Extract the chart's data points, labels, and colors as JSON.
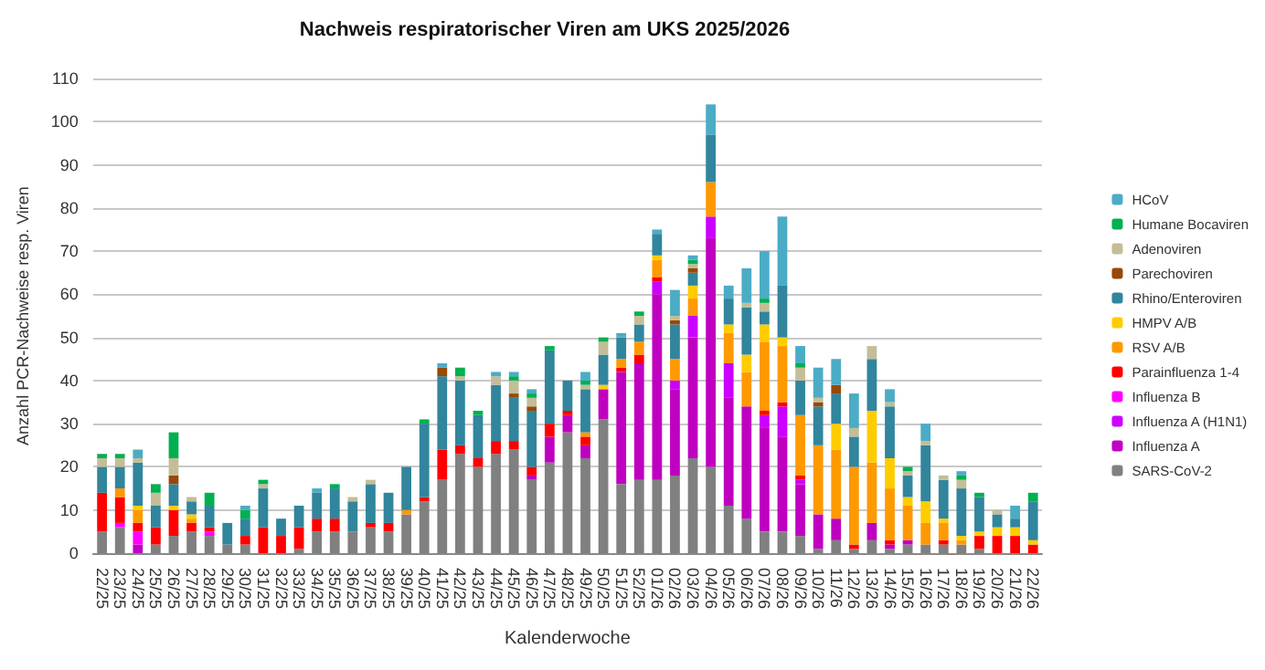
{
  "chart_data": {
    "type": "bar",
    "title": "Nachweis respiratorischer Viren am UKS 2025/2026",
    "xlabel": "Kalenderwoche",
    "ylabel": "Anzahl PCR-Nachweise resp. Viren",
    "categories": [
      "22/25",
      "23/25",
      "24/25",
      "25/25",
      "26/25",
      "27/25",
      "28/25",
      "29/25",
      "30/25",
      "31/25",
      "32/25",
      "33/25",
      "34/25",
      "35/25",
      "36/25",
      "37/25",
      "38/25",
      "39/25",
      "40/25",
      "41/25",
      "42/25",
      "43/25",
      "44/25",
      "45/25",
      "46/25",
      "47/25",
      "48/25",
      "49/25",
      "50/25",
      "51/25",
      "52/25",
      "01/26",
      "02/26",
      "03/26",
      "04/26",
      "05/26",
      "06/26",
      "07/26",
      "08/26",
      "09/26",
      "10/26",
      "11/26",
      "12/26",
      "13/26",
      "14/26",
      "15/26",
      "16/26",
      "17/26",
      "18/26",
      "19/26",
      "20/26",
      "21/26",
      "22/26"
    ],
    "stacked": true,
    "ylim": [
      0,
      110
    ],
    "yticks": [
      0,
      10,
      20,
      30,
      40,
      50,
      60,
      70,
      80,
      90,
      100,
      110
    ],
    "grid": "y",
    "legend": "right",
    "series": [
      {
        "name": "SARS-CoV-2",
        "color": "#808080",
        "values": [
          5,
          6,
          0,
          2,
          4,
          5,
          4,
          2,
          2,
          0,
          0,
          1,
          5,
          5,
          5,
          6,
          5,
          9,
          12,
          17,
          23,
          20,
          23,
          24,
          17,
          21,
          28,
          22,
          31,
          16,
          17,
          17,
          18,
          22,
          20,
          11,
          8,
          5,
          5,
          4,
          1,
          3,
          1,
          3,
          1,
          2,
          2,
          2,
          2,
          1,
          0,
          0,
          0
        ]
      },
      {
        "name": "Influenza A",
        "color": "#c000c0",
        "values": [
          0,
          0,
          2,
          0,
          0,
          0,
          0,
          0,
          0,
          0,
          0,
          0,
          0,
          0,
          0,
          0,
          0,
          0,
          0,
          0,
          0,
          0,
          0,
          0,
          1,
          6,
          4,
          3,
          7,
          26,
          27,
          43,
          20,
          28,
          53,
          25,
          26,
          24,
          22,
          12,
          8,
          5,
          0,
          4,
          1,
          1,
          0,
          0,
          0,
          0,
          0,
          0,
          0
        ]
      },
      {
        "name": "Influenza A (H1N1)",
        "color": "#cc00ff",
        "values": [
          0,
          0,
          0,
          0,
          0,
          0,
          0,
          0,
          0,
          0,
          0,
          0,
          0,
          0,
          0,
          0,
          0,
          0,
          0,
          0,
          0,
          0,
          0,
          0,
          0,
          0,
          0,
          0,
          0,
          0,
          0,
          3,
          2,
          5,
          5,
          8,
          0,
          3,
          7,
          1,
          0,
          0,
          0,
          0,
          0,
          0,
          0,
          0,
          0,
          0,
          0,
          0,
          0
        ]
      },
      {
        "name": "Influenza B",
        "color": "#ff00ff",
        "values": [
          0,
          1,
          3,
          0,
          0,
          0,
          1,
          0,
          0,
          0,
          0,
          0,
          0,
          0,
          0,
          0,
          0,
          0,
          0,
          0,
          0,
          0,
          0,
          0,
          0,
          0,
          0,
          0,
          0,
          0,
          0,
          0,
          0,
          0,
          0,
          0,
          0,
          0,
          0,
          0,
          0,
          0,
          0,
          0,
          0,
          0,
          0,
          0,
          0,
          0,
          0,
          0,
          0
        ]
      },
      {
        "name": "Parainfluenza 1-4",
        "color": "#ff0000",
        "values": [
          9,
          6,
          2,
          4,
          6,
          2,
          1,
          0,
          2,
          6,
          4,
          5,
          3,
          3,
          0,
          1,
          2,
          0,
          1,
          7,
          2,
          2,
          3,
          2,
          2,
          3,
          1,
          2,
          0,
          1,
          2,
          1,
          0,
          0,
          0,
          0,
          0,
          1,
          1,
          1,
          0,
          0,
          1,
          0,
          1,
          0,
          0,
          1,
          0,
          3,
          4,
          4,
          2
        ]
      },
      {
        "name": "RSV A/B",
        "color": "#ff9900",
        "values": [
          0,
          2,
          3,
          0,
          0,
          1,
          0,
          0,
          0,
          0,
          0,
          0,
          0,
          0,
          0,
          0,
          0,
          1,
          0,
          0,
          0,
          0,
          0,
          0,
          0,
          0,
          0,
          1,
          0,
          2,
          3,
          4,
          5,
          4,
          8,
          7,
          8,
          16,
          13,
          14,
          16,
          16,
          18,
          14,
          12,
          8,
          5,
          4,
          1,
          0,
          0,
          0,
          0
        ]
      },
      {
        "name": "HMPV A/B",
        "color": "#ffcc00",
        "values": [
          0,
          0,
          1,
          0,
          1,
          1,
          0,
          0,
          0,
          0,
          0,
          0,
          0,
          0,
          0,
          0,
          0,
          0,
          0,
          0,
          0,
          0,
          0,
          0,
          0,
          0,
          0,
          0,
          1,
          0,
          0,
          1,
          0,
          3,
          0,
          2,
          4,
          4,
          2,
          0,
          0,
          6,
          0,
          12,
          7,
          2,
          5,
          1,
          1,
          1,
          2,
          2,
          1
        ]
      },
      {
        "name": "Rhino/Enteroviren",
        "color": "#31859c",
        "values": [
          6,
          5,
          10,
          5,
          5,
          3,
          5,
          5,
          4,
          9,
          4,
          5,
          6,
          7,
          7,
          9,
          7,
          10,
          17,
          17,
          15,
          10,
          13,
          10,
          13,
          17,
          7,
          10,
          7,
          5,
          4,
          5,
          8,
          3,
          11,
          6,
          11,
          3,
          12,
          8,
          9,
          7,
          7,
          12,
          12,
          5,
          13,
          9,
          11,
          8,
          3,
          2,
          9
        ]
      },
      {
        "name": "Parechoviren",
        "color": "#984807",
        "values": [
          0,
          0,
          0,
          0,
          2,
          0,
          0,
          0,
          0,
          0,
          0,
          0,
          0,
          0,
          0,
          0,
          0,
          0,
          0,
          2,
          0,
          0,
          0,
          1,
          1,
          0,
          0,
          0,
          0,
          0,
          0,
          0,
          1,
          1,
          0,
          0,
          0,
          0,
          0,
          0,
          1,
          2,
          0,
          0,
          0,
          0,
          0,
          0,
          0,
          0,
          0,
          0,
          0
        ]
      },
      {
        "name": "Adenoviren",
        "color": "#c4bd97",
        "values": [
          2,
          2,
          1,
          3,
          4,
          1,
          0,
          0,
          0,
          1,
          0,
          0,
          0,
          0,
          1,
          1,
          0,
          0,
          0,
          0,
          1,
          0,
          2,
          3,
          2,
          0,
          0,
          1,
          3,
          0,
          2,
          0,
          1,
          1,
          0,
          0,
          1,
          2,
          0,
          3,
          1,
          0,
          2,
          3,
          1,
          1,
          1,
          1,
          2,
          0,
          1,
          0,
          0
        ]
      },
      {
        "name": "Humane Bocaviren",
        "color": "#00b050",
        "values": [
          1,
          1,
          0,
          2,
          6,
          0,
          3,
          0,
          2,
          1,
          0,
          0,
          0,
          1,
          0,
          0,
          0,
          0,
          1,
          0,
          2,
          1,
          0,
          1,
          1,
          1,
          0,
          1,
          1,
          0,
          1,
          0,
          0,
          1,
          0,
          0,
          0,
          1,
          0,
          1,
          0,
          0,
          0,
          0,
          0,
          1,
          0,
          0,
          1,
          1,
          0,
          0,
          2
        ]
      },
      {
        "name": "HCoV",
        "color": "#4bacc6",
        "values": [
          0,
          0,
          2,
          0,
          0,
          0,
          0,
          0,
          1,
          0,
          0,
          0,
          1,
          0,
          0,
          0,
          0,
          0,
          0,
          1,
          0,
          0,
          1,
          1,
          1,
          0,
          0,
          2,
          0,
          1,
          0,
          1,
          6,
          1,
          7,
          3,
          8,
          11,
          16,
          4,
          7,
          6,
          8,
          0,
          3,
          0,
          4,
          0,
          1,
          0,
          0,
          3,
          0
        ]
      }
    ]
  }
}
